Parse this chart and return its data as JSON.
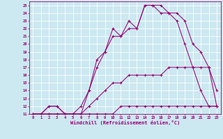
{
  "xlabel": "Windchill (Refroidissement éolien,°C)",
  "bg_color": "#cce8f0",
  "grid_color": "#ffffff",
  "line_color": "#990077",
  "xlim": [
    -0.5,
    23.5
  ],
  "ylim": [
    11,
    25.5
  ],
  "yticks": [
    11,
    12,
    13,
    14,
    15,
    16,
    17,
    18,
    19,
    20,
    21,
    22,
    23,
    24,
    25
  ],
  "xticks": [
    0,
    1,
    2,
    3,
    4,
    5,
    6,
    7,
    8,
    9,
    10,
    11,
    12,
    13,
    14,
    15,
    16,
    17,
    18,
    19,
    20,
    21,
    22,
    23
  ],
  "lines": [
    {
      "x": [
        0,
        1,
        2,
        3,
        4,
        5,
        6,
        7,
        8,
        9,
        10,
        11,
        12,
        13,
        14,
        15,
        16,
        17,
        18,
        19,
        20,
        21,
        22,
        23
      ],
      "y": [
        11,
        11,
        11,
        11,
        11,
        11,
        11,
        11,
        11,
        11,
        11,
        12,
        12,
        12,
        12,
        12,
        12,
        12,
        12,
        12,
        12,
        12,
        12,
        12
      ]
    },
    {
      "x": [
        0,
        1,
        2,
        3,
        4,
        5,
        6,
        7,
        8,
        9,
        10,
        11,
        12,
        13,
        14,
        15,
        16,
        17,
        18,
        19,
        20,
        21,
        22,
        23
      ],
      "y": [
        11,
        11,
        11,
        11,
        11,
        11,
        11,
        12,
        13,
        14,
        15,
        15,
        16,
        16,
        16,
        16,
        16,
        17,
        17,
        17,
        17,
        17,
        17,
        12
      ]
    },
    {
      "x": [
        0,
        1,
        2,
        3,
        4,
        5,
        6,
        7,
        8,
        9,
        10,
        11,
        12,
        13,
        14,
        15,
        16,
        17,
        18,
        19,
        20,
        21,
        22,
        23
      ],
      "y": [
        11,
        11,
        12,
        12,
        11,
        11,
        11,
        14,
        18,
        19,
        21,
        21,
        22,
        22,
        25,
        25,
        25,
        24,
        24,
        23,
        20,
        19,
        17,
        14
      ]
    },
    {
      "x": [
        0,
        1,
        2,
        3,
        4,
        5,
        6,
        7,
        8,
        9,
        10,
        11,
        12,
        13,
        14,
        15,
        16,
        17,
        18,
        19,
        20,
        21,
        22,
        23
      ],
      "y": [
        11,
        11,
        12,
        12,
        11,
        11,
        12,
        14,
        17,
        19,
        22,
        21,
        23,
        22,
        25,
        25,
        24,
        24,
        23,
        20,
        17,
        14,
        12,
        12
      ]
    }
  ]
}
